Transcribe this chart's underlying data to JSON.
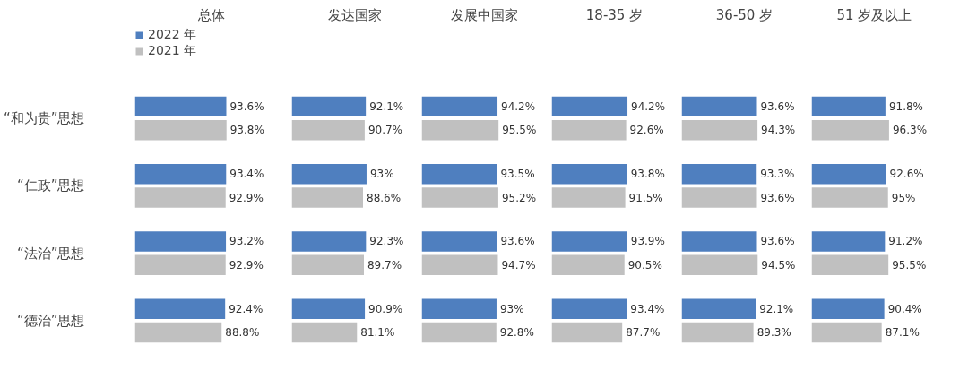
{
  "chart_data": [
    {
      "type": "bar",
      "orientation": "horizontal",
      "title": "总体",
      "categories": [
        "“和为贵”思想",
        "“仁政”思想",
        "“法治”思想",
        "“德治”思想"
      ],
      "legend": "top left",
      "series": [
        {
          "name": "2022 年",
          "color": "#4f7fbf",
          "values": [
            93.6,
            93.4,
            93.2,
            92.4
          ],
          "value_labels": [
            "93.6%",
            "93.4%",
            "93.2%",
            "92.4%"
          ]
        },
        {
          "name": "2021 年",
          "color": "#c0c0c0",
          "values": [
            93.8,
            92.9,
            92.9,
            88.8
          ],
          "value_labels": [
            "93.8%",
            "92.9%",
            "92.9%",
            "88.8%"
          ]
        }
      ]
    },
    {
      "type": "bar",
      "orientation": "horizontal",
      "title": "发达国家",
      "categories": [
        null,
        null,
        null,
        null
      ],
      "series": [
        {
          "color": "#4f7fbf",
          "values": [
            92.1,
            93,
            92.3,
            90.9
          ],
          "value_labels": [
            "92.1%",
            "93%",
            "92.3%",
            "90.9%"
          ]
        },
        {
          "color": "#c0c0c0",
          "values": [
            90.7,
            88.6,
            89.7,
            81.1
          ],
          "value_labels": [
            "90.7%",
            "88.6%",
            "89.7%",
            "81.1%"
          ]
        }
      ]
    },
    {
      "type": "bar",
      "orientation": "horizontal",
      "title": "发展中国家",
      "categories": [
        null,
        null,
        null,
        null
      ],
      "series": [
        {
          "color": "#4f7fbf",
          "values": [
            94.2,
            93.5,
            93.6,
            93
          ],
          "value_labels": [
            "94.2%",
            "93.5%",
            "93.6%",
            "93%"
          ]
        },
        {
          "color": "#c0c0c0",
          "values": [
            95.5,
            95.2,
            94.7,
            92.8
          ],
          "value_labels": [
            "95.5%",
            "95.2%",
            "94.7%",
            "92.8%"
          ]
        }
      ]
    },
    {
      "type": "bar",
      "orientation": "horizontal",
      "title": "18-35 岁",
      "categories": [
        null,
        null,
        null,
        null
      ],
      "series": [
        {
          "color": "#4f7fbf",
          "values": [
            94.2,
            93.8,
            93.9,
            93.4
          ],
          "value_labels": [
            "94.2%",
            "93.8%",
            "93.9%",
            "93.4%"
          ]
        },
        {
          "color": "#c0c0c0",
          "values": [
            92.6,
            91.5,
            90.5,
            87.7
          ],
          "value_labels": [
            "92.6%",
            "91.5%",
            "90.5%",
            "87.7%"
          ]
        }
      ]
    },
    {
      "type": "bar",
      "orientation": "horizontal",
      "title": "36-50 岁",
      "categories": [
        null,
        null,
        null,
        null
      ],
      "series": [
        {
          "color": "#4f7fbf",
          "values": [
            93.6,
            93.3,
            93.6,
            92.1
          ],
          "value_labels": [
            "93.6%",
            "93.3%",
            "93.6%",
            "92.1%"
          ]
        },
        {
          "color": "#c0c0c0",
          "values": [
            94.3,
            93.6,
            94.5,
            89.3
          ],
          "value_labels": [
            "94.3%",
            "93.6%",
            "94.5%",
            "89.3%"
          ]
        }
      ]
    },
    {
      "type": "bar",
      "orientation": "horizontal",
      "title": "51 岁及以上",
      "categories": [
        null,
        null,
        null,
        null
      ],
      "series": [
        {
          "color": "#4f7fbf",
          "values": [
            91.8,
            92.6,
            91.2,
            90.4
          ],
          "value_labels": [
            "91.8%",
            "92.6%",
            "91.2%",
            "90.4%"
          ]
        },
        {
          "color": "#c0c0c0",
          "values": [
            96.3,
            95,
            95.5,
            87.1
          ],
          "value_labels": [
            "96.3%",
            "95%",
            "95.5%",
            "87.1%"
          ]
        }
      ]
    }
  ]
}
